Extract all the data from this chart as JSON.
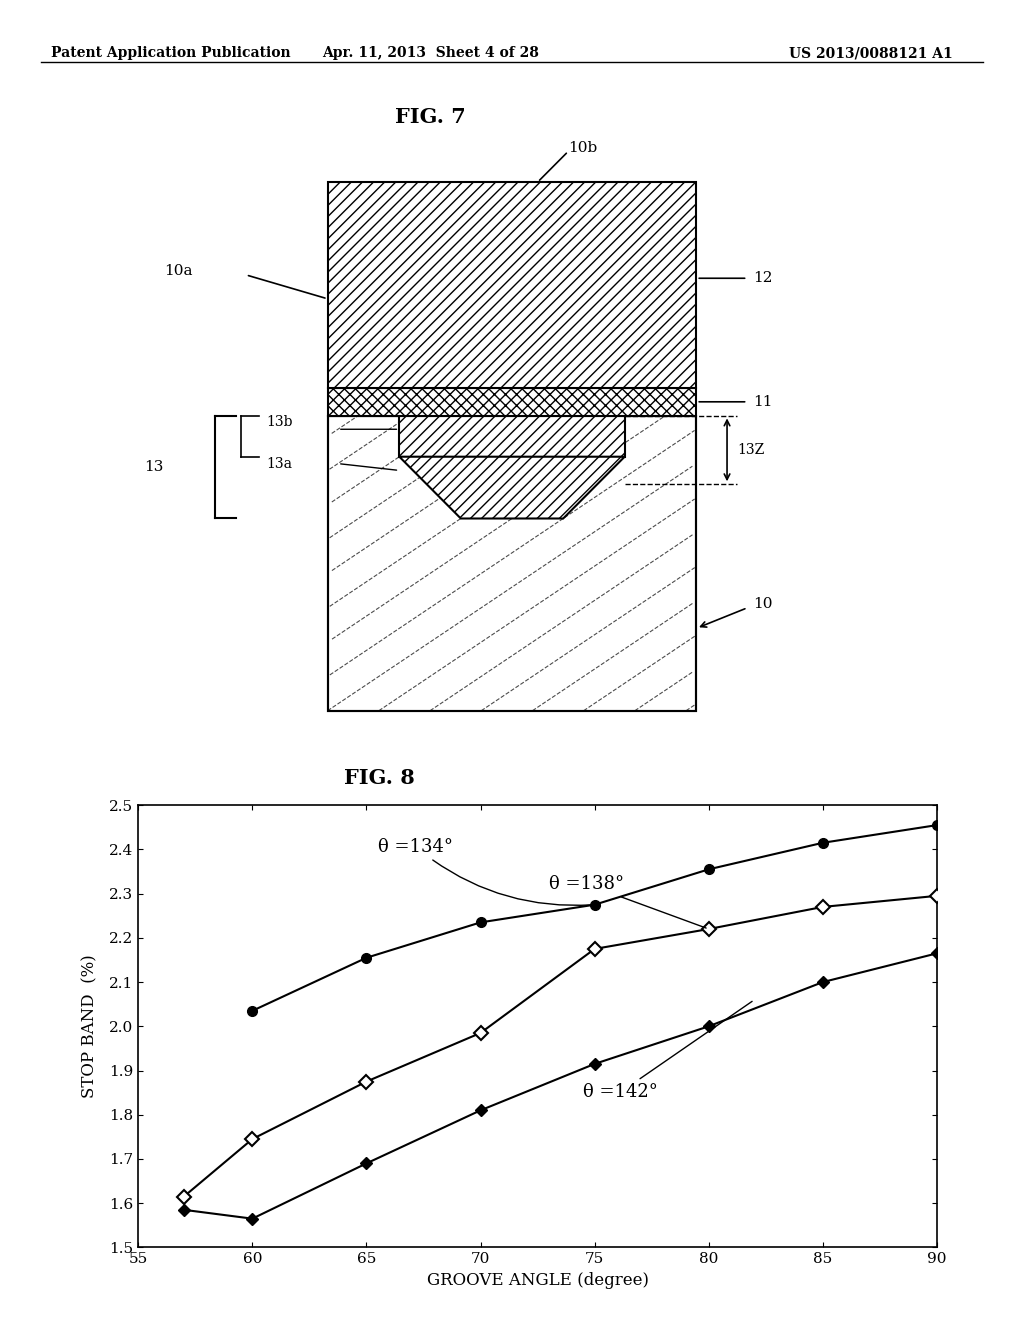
{
  "header_left": "Patent Application Publication",
  "header_mid": "Apr. 11, 2013  Sheet 4 of 28",
  "header_right": "US 2013/0088121 A1",
  "fig7_title": "FIG. 7",
  "fig8_title": "FIG. 8",
  "fig8_xlabel": "GROOVE ANGLE (degree)",
  "fig8_ylabel": "STOP BAND  (%)",
  "fig8_xlim": [
    55,
    90
  ],
  "fig8_ylim": [
    1.5,
    2.5
  ],
  "fig8_xticks": [
    55,
    60,
    65,
    70,
    75,
    80,
    85,
    90
  ],
  "fig8_yticks": [
    1.5,
    1.6,
    1.7,
    1.8,
    1.9,
    2.0,
    2.1,
    2.2,
    2.3,
    2.4,
    2.5
  ],
  "curve134_x": [
    60,
    65,
    70,
    75,
    80,
    85,
    90
  ],
  "curve134_y": [
    2.035,
    2.155,
    2.235,
    2.275,
    2.355,
    2.415,
    2.455
  ],
  "curve138_x": [
    57,
    60,
    65,
    70,
    75,
    80,
    85,
    90
  ],
  "curve138_y": [
    1.615,
    1.745,
    1.875,
    1.985,
    2.175,
    2.22,
    2.27,
    2.295
  ],
  "curve142_x": [
    57,
    60,
    65,
    70,
    75,
    80,
    85,
    90
  ],
  "curve142_y": [
    1.585,
    1.565,
    1.69,
    1.81,
    1.915,
    2.0,
    2.1,
    2.165
  ],
  "label134": "θ =134°",
  "label138": "θ =138°",
  "label142": "θ =142°",
  "bg_color": "#ffffff",
  "line_color": "#000000"
}
